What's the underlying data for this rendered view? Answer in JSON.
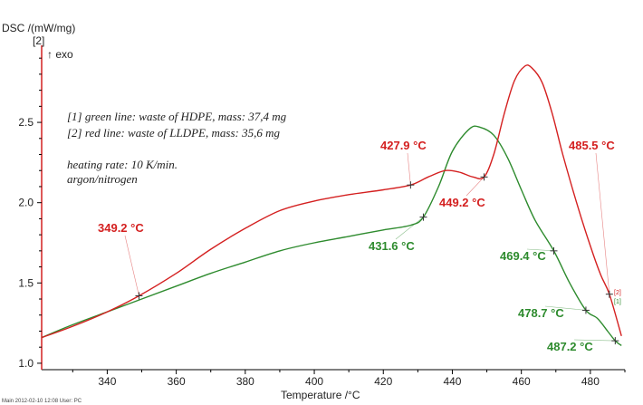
{
  "chart_data": {
    "type": "line",
    "ylabel": "DSC /(mW/mg)",
    "ylabel_sub": "[2]",
    "exo_label": "↑ exo",
    "xlabel": "Temperature /°C",
    "xlim": [
      321,
      490
    ],
    "ylim": [
      0.96,
      2.98
    ],
    "xticks": [
      340,
      360,
      380,
      400,
      420,
      440,
      460,
      480
    ],
    "yticks": [
      1.0,
      1.5,
      2.0,
      2.5
    ],
    "ytick_labels": [
      "1.0",
      "1.5",
      "2.0",
      "2.5"
    ],
    "legend": [
      "[1] green line: waste of HDPE, mass: 37,4 mg",
      "[2] red line: waste of LLDPE, mass: 35,6 mg",
      "heating rate: 10 K/min.",
      "argon/nitrogen"
    ],
    "series": [
      {
        "name": "[1] green line: waste of HDPE, mass: 37,4 mg",
        "color": "#2e8b2e",
        "x": [
          321,
          330,
          340,
          350,
          360,
          370,
          380,
          390,
          400,
          410,
          420,
          428,
          431.6,
          436,
          440,
          445,
          448,
          452,
          456,
          460,
          464,
          469.4,
          474,
          478.7,
          482,
          485,
          487.2,
          489
        ],
        "y": [
          1.16,
          1.24,
          1.32,
          1.4,
          1.48,
          1.56,
          1.63,
          1.7,
          1.75,
          1.79,
          1.83,
          1.86,
          1.91,
          2.1,
          2.32,
          2.46,
          2.47,
          2.42,
          2.28,
          2.08,
          1.89,
          1.7,
          1.5,
          1.33,
          1.28,
          1.2,
          1.14,
          1.11
        ]
      },
      {
        "name": "[2] red line: waste of LLDPE, mass: 35,6 mg",
        "color": "#d42020",
        "x": [
          321,
          330,
          340,
          349.2,
          360,
          370,
          380,
          390,
          400,
          410,
          420,
          427.9,
          433,
          438,
          442,
          446,
          449.2,
          452,
          455,
          458,
          461,
          463,
          466,
          469,
          472,
          476,
          480,
          483,
          485.5,
          489
        ],
        "y": [
          1.16,
          1.23,
          1.32,
          1.42,
          1.56,
          1.71,
          1.84,
          1.95,
          2.01,
          2.05,
          2.08,
          2.11,
          2.16,
          2.2,
          2.19,
          2.16,
          2.16,
          2.3,
          2.55,
          2.76,
          2.85,
          2.84,
          2.75,
          2.55,
          2.3,
          2.0,
          1.73,
          1.55,
          1.43,
          1.17
        ]
      }
    ],
    "annotations": [
      {
        "label": "349.2 °C",
        "x": 349.2,
        "y": 1.42,
        "series": 1
      },
      {
        "label": "427.9 °C",
        "x": 427.9,
        "y": 2.11,
        "series": 1
      },
      {
        "label": "449.2 °C",
        "x": 449.2,
        "y": 2.16,
        "series": 1
      },
      {
        "label": "485.5 °C",
        "x": 485.5,
        "y": 1.43,
        "series": 1
      },
      {
        "label": "431.6 °C",
        "x": 431.6,
        "y": 1.91,
        "series": 0
      },
      {
        "label": "469.4 °C",
        "x": 469.4,
        "y": 1.7,
        "series": 0
      },
      {
        "label": "478.7 °C",
        "x": 478.7,
        "y": 1.33,
        "series": 0
      },
      {
        "label": "487.2 °C",
        "x": 487.2,
        "y": 1.14,
        "series": 0
      }
    ],
    "end_labels": [
      "[2]",
      "[1]"
    ],
    "grid": false
  },
  "footer": "Main    2012-02-10 12:08    User: PC"
}
